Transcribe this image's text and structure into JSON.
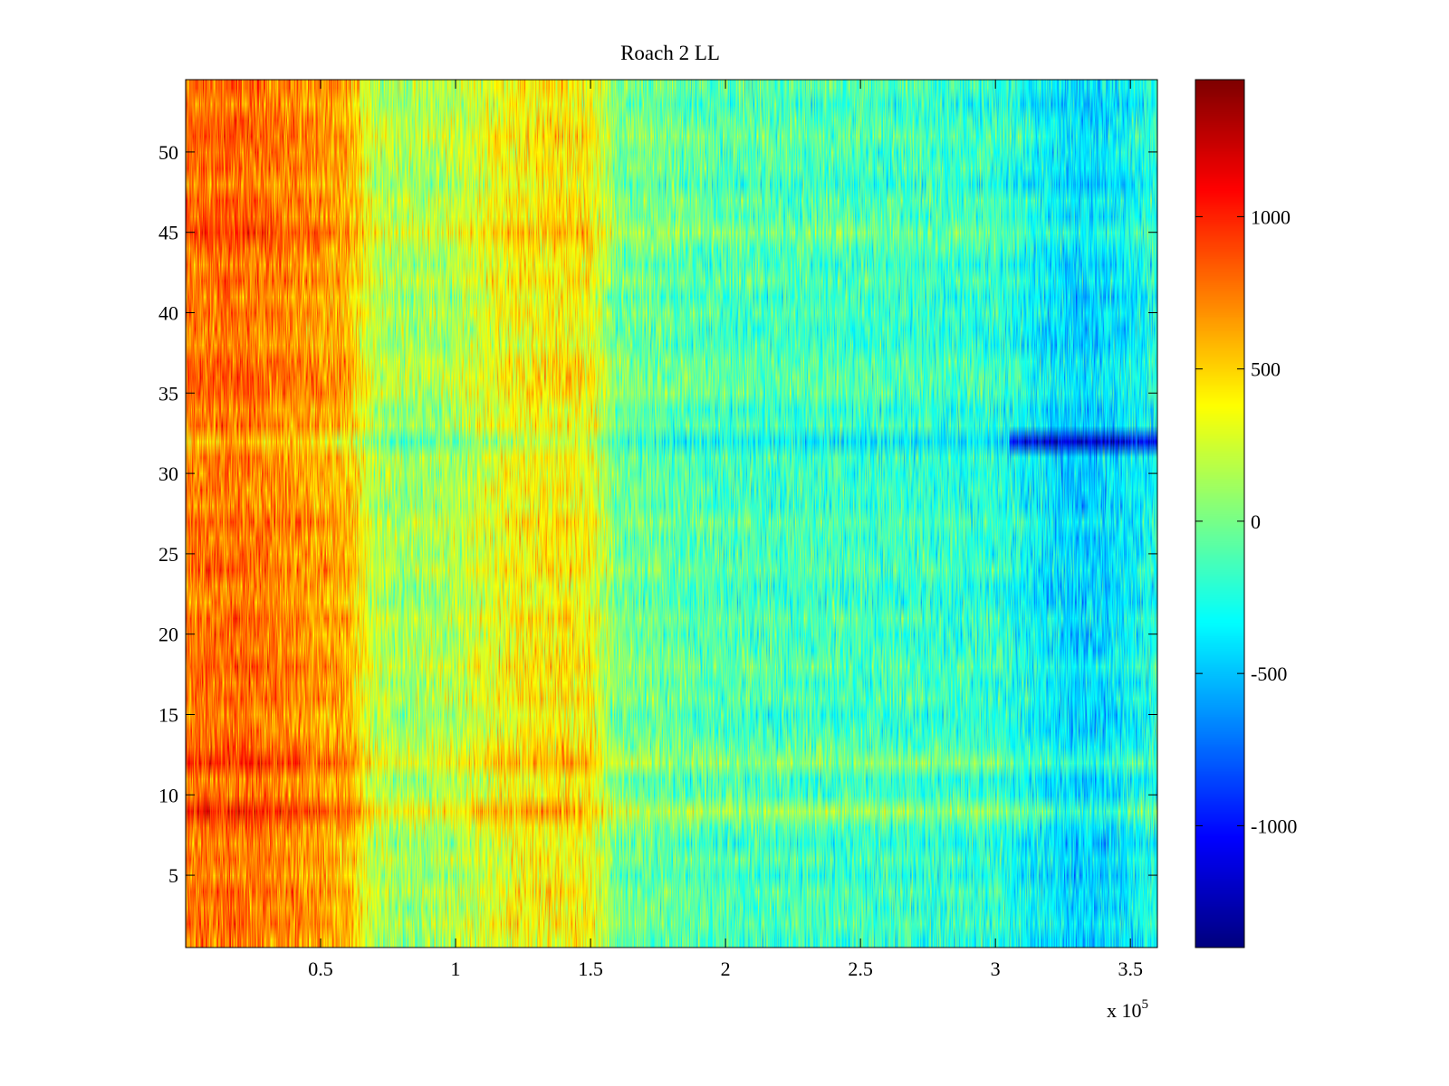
{
  "chart_data": {
    "type": "heatmap",
    "title": "Roach 2 LL",
    "xlabel": "",
    "ylabel": "",
    "x_multiplier_label": "x 10",
    "x_multiplier_exponent": "5",
    "xlim": [
      0,
      3.6
    ],
    "ylim": [
      0.5,
      54.5
    ],
    "x_ticks": [
      0.5,
      1,
      1.5,
      2,
      2.5,
      3,
      3.5
    ],
    "x_tick_labels": [
      "0.5",
      "1",
      "1.5",
      "2",
      "2.5",
      "3",
      "3.5"
    ],
    "y_ticks": [
      5,
      10,
      15,
      20,
      25,
      30,
      35,
      40,
      45,
      50
    ],
    "y_tick_labels": [
      "5",
      "10",
      "15",
      "20",
      "25",
      "30",
      "35",
      "40",
      "45",
      "50"
    ],
    "rows": 54,
    "colorbar": {
      "colormap": "jet",
      "range": [
        -1400,
        1450
      ],
      "ticks": [
        -1000,
        -500,
        0,
        500,
        1000
      ],
      "tick_labels": [
        "-1000",
        "-500",
        "0",
        "500",
        "1000"
      ]
    },
    "x_profile": {
      "x": [
        0,
        0.2,
        0.4,
        0.6,
        0.7,
        0.8,
        1.0,
        1.2,
        1.4,
        1.5,
        1.6,
        2.0,
        2.5,
        3.0,
        3.3,
        3.4,
        3.6
      ],
      "mean": [
        750,
        800,
        700,
        600,
        200,
        120,
        170,
        380,
        420,
        380,
        0,
        -120,
        -150,
        -200,
        -450,
        -420,
        -250
      ]
    },
    "row_offsets": [
      {
        "row": 32,
        "offset": -250
      },
      {
        "row": 28,
        "offset": -120
      },
      {
        "row": 12,
        "offset": 150
      },
      {
        "row": 9,
        "offset": 200
      },
      {
        "row": 45,
        "offset": 100
      },
      {
        "row": 21,
        "offset": 80
      }
    ],
    "grid": false
  }
}
